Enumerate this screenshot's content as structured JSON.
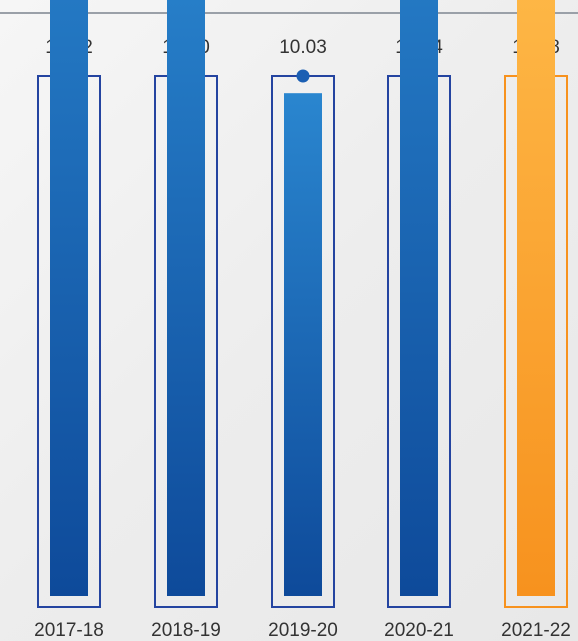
{
  "chart_data": {
    "type": "bar",
    "categories": [
      "2017-18",
      "2018-19",
      "2019-20",
      "2020-21",
      "2021-22"
    ],
    "values": [
      16.22,
      14.3,
      10.03,
      16.34,
      15.58
    ],
    "highlight_index": 4,
    "ylim": [
      0,
      20
    ],
    "grid": false,
    "legend": "none"
  },
  "colors": {
    "primary_top": "#2a86cf",
    "primary_bottom": "#0e4a9a",
    "outline": "#2444a0",
    "accent_top": "#ffbf4f",
    "accent_bottom": "#f7921e",
    "accent_outline": "#f7921e",
    "dot": "#1b5fb3",
    "accent_dot": "#ffb02e",
    "top_rule": "#9aa0a8",
    "text": "#333333"
  }
}
